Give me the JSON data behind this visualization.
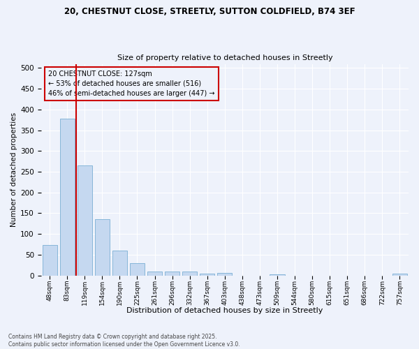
{
  "title_line1": "20, CHESTNUT CLOSE, STREETLY, SUTTON COLDFIELD, B74 3EF",
  "title_line2": "Size of property relative to detached houses in Streetly",
  "xlabel": "Distribution of detached houses by size in Streetly",
  "ylabel": "Number of detached properties",
  "footer_line1": "Contains HM Land Registry data © Crown copyright and database right 2025.",
  "footer_line2": "Contains public sector information licensed under the Open Government Licence v3.0.",
  "annotation_line1": "20 CHESTNUT CLOSE: 127sqm",
  "annotation_line2": "← 53% of detached houses are smaller (516)",
  "annotation_line3": "46% of semi-detached houses are larger (447) →",
  "bar_categories": [
    "48sqm",
    "83sqm",
    "119sqm",
    "154sqm",
    "190sqm",
    "225sqm",
    "261sqm",
    "296sqm",
    "332sqm",
    "367sqm",
    "403sqm",
    "438sqm",
    "473sqm",
    "509sqm",
    "544sqm",
    "580sqm",
    "615sqm",
    "651sqm",
    "686sqm",
    "722sqm",
    "757sqm"
  ],
  "bar_values": [
    73,
    378,
    265,
    135,
    60,
    29,
    10,
    10,
    10,
    5,
    6,
    0,
    0,
    3,
    0,
    0,
    0,
    0,
    0,
    0,
    5
  ],
  "bar_color": "#c5d8f0",
  "bar_edge_color": "#7aafd4",
  "vline_color": "#cc0000",
  "annotation_box_color": "#cc0000",
  "background_color": "#eef2fb",
  "ylim": [
    0,
    510
  ],
  "yticks": [
    0,
    50,
    100,
    150,
    200,
    250,
    300,
    350,
    400,
    450,
    500
  ]
}
